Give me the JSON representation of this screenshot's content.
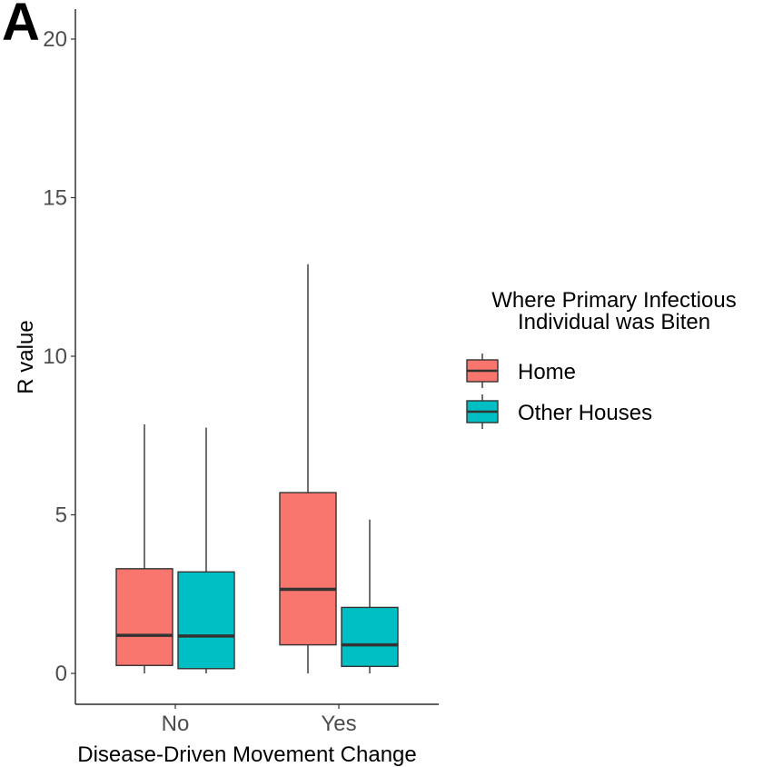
{
  "panel_label": "A",
  "chart_data": {
    "type": "boxplot",
    "xlabel": "Disease-Driven Movement Change",
    "ylabel": "R value",
    "categories": [
      "No",
      "Yes"
    ],
    "ylim": [
      -1,
      21
    ],
    "yticks": [
      0,
      5,
      10,
      15,
      20
    ],
    "grid": false,
    "legend": {
      "title_lines": [
        "Where Primary Infectious",
        "Individual was Biten"
      ],
      "placement": "right"
    },
    "series": [
      {
        "name": "Home",
        "color": "#F8766D",
        "boxes": [
          {
            "category": "No",
            "min": 0.0,
            "q1": 0.25,
            "median": 1.2,
            "q3": 3.3,
            "max": 7.85
          },
          {
            "category": "Yes",
            "min": 0.0,
            "q1": 0.9,
            "median": 2.65,
            "q3": 5.7,
            "max": 12.9
          }
        ]
      },
      {
        "name": "Other Houses",
        "color": "#00BFC4",
        "boxes": [
          {
            "category": "No",
            "min": 0.0,
            "q1": 0.15,
            "median": 1.18,
            "q3": 3.2,
            "max": 7.75
          },
          {
            "category": "Yes",
            "min": 0.0,
            "q1": 0.22,
            "median": 0.9,
            "q3": 2.08,
            "max": 4.85
          }
        ]
      }
    ]
  }
}
